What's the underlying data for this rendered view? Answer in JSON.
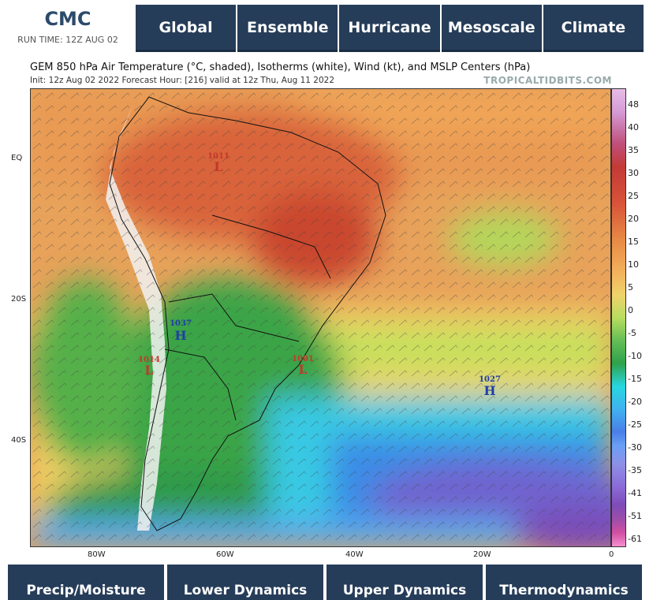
{
  "header": {
    "model": "CMC",
    "run_time": "RUN TIME: 12Z AUG 02"
  },
  "top_nav": [
    "Global",
    "Ensemble",
    "Hurricane",
    "Mesoscale",
    "Climate"
  ],
  "map": {
    "title": "GEM 850 hPa Air Temperature (°C, shaded), Isotherms (white), Wind (kt), and MSLP Centers (hPa)",
    "subtitle": "Init: 12z Aug 02 2022   Forecast Hour: [216]   valid at 12z Thu, Aug 11 2022",
    "watermark": "TROPICALTIDBITS.COM",
    "lat_labels": [
      "EQ",
      "20S",
      "40S"
    ],
    "lon_labels": [
      "80W",
      "60W",
      "40W",
      "20W",
      "0"
    ],
    "pressure_centers": [
      {
        "value": "1011",
        "type": "L"
      },
      {
        "value": "1037",
        "type": "H"
      },
      {
        "value": "1014",
        "type": "L"
      },
      {
        "value": "1001",
        "type": "L"
      },
      {
        "value": "1027",
        "type": "H"
      }
    ],
    "colors": {
      "low": "#c0392b",
      "high": "#1f3fa6"
    }
  },
  "colorbar": [
    "48",
    "40",
    "35",
    "30",
    "25",
    "20",
    "15",
    "10",
    "5",
    "0",
    "-5",
    "-10",
    "-15",
    "-20",
    "-25",
    "-30",
    "-35",
    "-41",
    "-51",
    "-61"
  ],
  "bottom_nav": [
    "Precip/Moisture",
    "Lower Dynamics",
    "Upper Dynamics",
    "Thermodynamics"
  ]
}
